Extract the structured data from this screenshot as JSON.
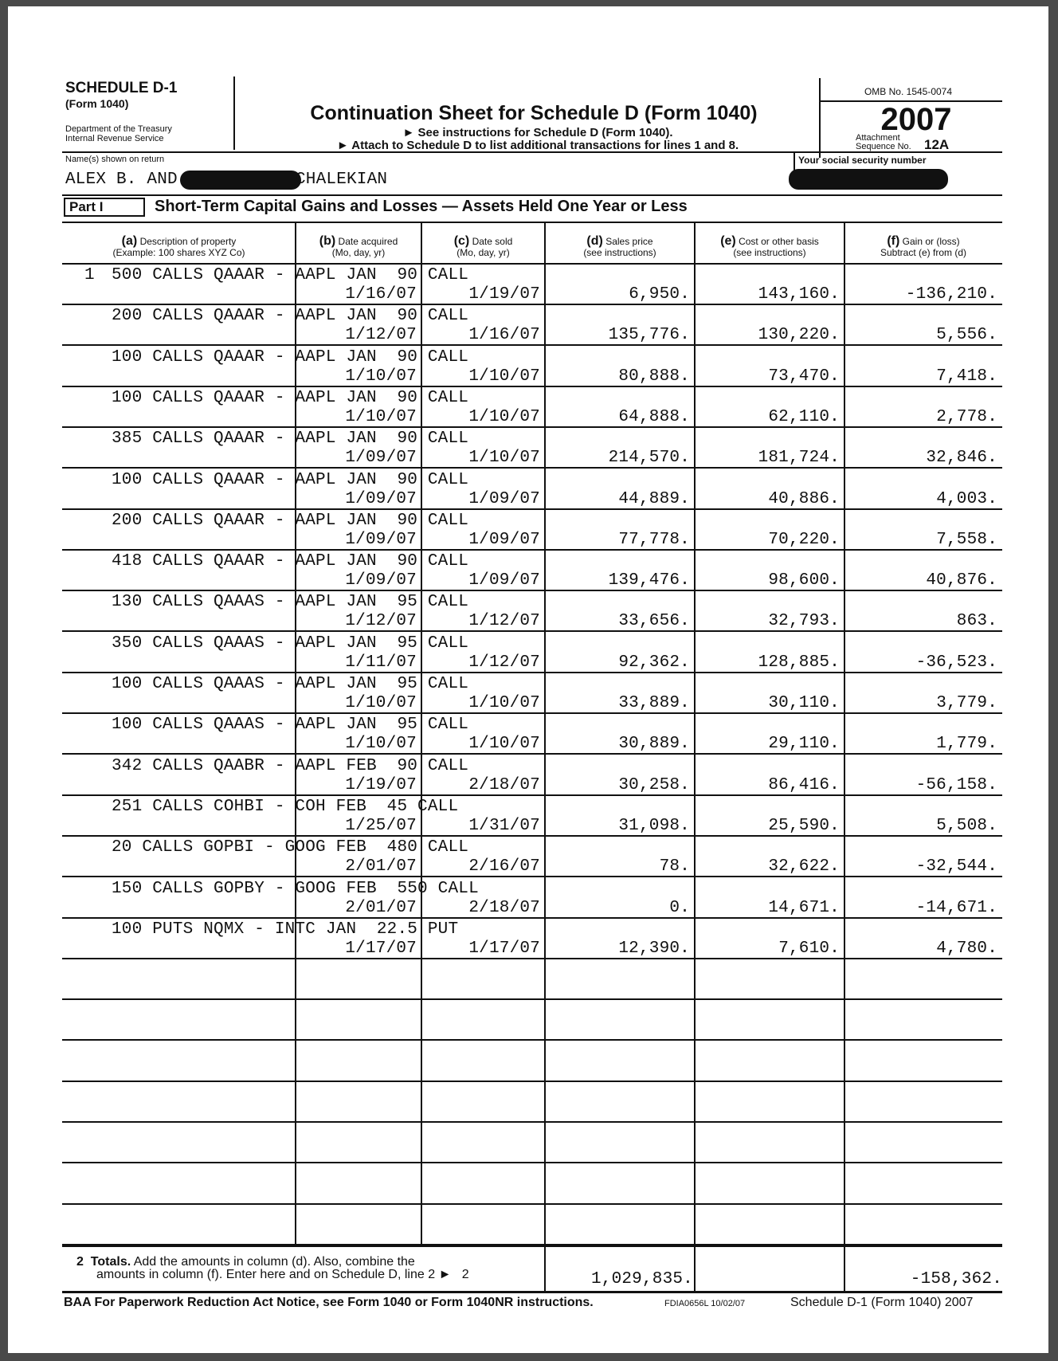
{
  "header": {
    "schedule": "SCHEDULE D-1",
    "form": "(Form 1040)",
    "department": "Department of the Treasury",
    "service": "Internal Revenue Service",
    "title": "Continuation Sheet for Schedule D (Form 1040)",
    "instruction1": "► See instructions for Schedule D (Form 1040).",
    "instruction2": "► Attach to Schedule D to list additional transactions for lines 1 and 8.",
    "omb": "OMB No. 1545-0074",
    "year": "2007",
    "attachment": "Attachment",
    "sequence_label": "Sequence No.",
    "sequence": "12A"
  },
  "taxpayer": {
    "name_label": "Name(s) shown on return",
    "name_first": "ALEX B. AND",
    "name_last": "CHALEKIAN",
    "ssn_label": "Your social security number"
  },
  "part": {
    "label": "Part I",
    "title": "Short-Term Capital Gains and Losses — Assets Held One Year or Less"
  },
  "columns": [
    {
      "letter": "(a)",
      "label": "Description of property",
      "sub": "(Example: 100 shares XYZ Co)"
    },
    {
      "letter": "(b)",
      "label": "Date acquired",
      "sub": "(Mo, day, yr)"
    },
    {
      "letter": "(c)",
      "label": "Date sold",
      "sub": "(Mo, day, yr)"
    },
    {
      "letter": "(d)",
      "label": "Sales price",
      "sub": "(see instructions)"
    },
    {
      "letter": "(e)",
      "label": "Cost or other basis",
      "sub": "(see instructions)"
    },
    {
      "letter": "(f)",
      "label": "Gain or (loss)",
      "sub": "Subtract (e) from (d)"
    }
  ],
  "line1_number": "1",
  "transactions": [
    {
      "description": "500 CALLS QAAAR - AAPL JAN  90 CALL",
      "acquired": "1/16/07",
      "sold": "1/19/07",
      "sales_price": "6,950.",
      "cost": "143,160.",
      "gain": "-136,210."
    },
    {
      "description": "200 CALLS QAAAR - AAPL JAN  90 CALL",
      "acquired": "1/12/07",
      "sold": "1/16/07",
      "sales_price": "135,776.",
      "cost": "130,220.",
      "gain": "5,556."
    },
    {
      "description": "100 CALLS QAAAR - AAPL JAN  90 CALL",
      "acquired": "1/10/07",
      "sold": "1/10/07",
      "sales_price": "80,888.",
      "cost": "73,470.",
      "gain": "7,418."
    },
    {
      "description": "100 CALLS QAAAR - AAPL JAN  90 CALL",
      "acquired": "1/10/07",
      "sold": "1/10/07",
      "sales_price": "64,888.",
      "cost": "62,110.",
      "gain": "2,778."
    },
    {
      "description": "385 CALLS QAAAR - AAPL JAN  90 CALL",
      "acquired": "1/09/07",
      "sold": "1/10/07",
      "sales_price": "214,570.",
      "cost": "181,724.",
      "gain": "32,846."
    },
    {
      "description": "100 CALLS QAAAR - AAPL JAN  90 CALL",
      "acquired": "1/09/07",
      "sold": "1/09/07",
      "sales_price": "44,889.",
      "cost": "40,886.",
      "gain": "4,003."
    },
    {
      "description": "200 CALLS QAAAR - AAPL JAN  90 CALL",
      "acquired": "1/09/07",
      "sold": "1/09/07",
      "sales_price": "77,778.",
      "cost": "70,220.",
      "gain": "7,558."
    },
    {
      "description": "418 CALLS QAAAR - AAPL JAN  90 CALL",
      "acquired": "1/09/07",
      "sold": "1/09/07",
      "sales_price": "139,476.",
      "cost": "98,600.",
      "gain": "40,876."
    },
    {
      "description": "130 CALLS QAAAS - AAPL JAN  95 CALL",
      "acquired": "1/12/07",
      "sold": "1/12/07",
      "sales_price": "33,656.",
      "cost": "32,793.",
      "gain": "863."
    },
    {
      "description": "350 CALLS QAAAS - AAPL JAN  95 CALL",
      "acquired": "1/11/07",
      "sold": "1/12/07",
      "sales_price": "92,362.",
      "cost": "128,885.",
      "gain": "-36,523."
    },
    {
      "description": "100 CALLS QAAAS - AAPL JAN  95 CALL",
      "acquired": "1/10/07",
      "sold": "1/10/07",
      "sales_price": "33,889.",
      "cost": "30,110.",
      "gain": "3,779."
    },
    {
      "description": "100 CALLS QAAAS - AAPL JAN  95 CALL",
      "acquired": "1/10/07",
      "sold": "1/10/07",
      "sales_price": "30,889.",
      "cost": "29,110.",
      "gain": "1,779."
    },
    {
      "description": "342 CALLS QAABR - AAPL FEB  90 CALL",
      "acquired": "1/19/07",
      "sold": "2/18/07",
      "sales_price": "30,258.",
      "cost": "86,416.",
      "gain": "-56,158."
    },
    {
      "description": "251 CALLS COHBI - COH FEB  45 CALL",
      "acquired": "1/25/07",
      "sold": "1/31/07",
      "sales_price": "31,098.",
      "cost": "25,590.",
      "gain": "5,508."
    },
    {
      "description": "20 CALLS GOPBI - GOOG FEB  480 CALL",
      "acquired": "2/01/07",
      "sold": "2/16/07",
      "sales_price": "78.",
      "cost": "32,622.",
      "gain": "-32,544."
    },
    {
      "description": "150 CALLS GOPBY - GOOG FEB  550 CALL",
      "acquired": "2/01/07",
      "sold": "2/18/07",
      "sales_price": "0.",
      "cost": "14,671.",
      "gain": "-14,671."
    },
    {
      "description": "100 PUTS NQMX - INTC JAN  22.5 PUT",
      "acquired": "1/17/07",
      "sold": "1/17/07",
      "sales_price": "12,390.",
      "cost": "7,610.",
      "gain": "4,780."
    }
  ],
  "totals": {
    "line_number": "2",
    "label_bold": "Totals.",
    "text1": "Add the amounts in column (d). Also, combine the",
    "text2": "amounts in column (f). Enter here and on Schedule D, line 2 ►",
    "box": "2",
    "sales_price": "1,029,835.",
    "gain": "-158,362."
  },
  "footer": {
    "notice": "BAA  For Paperwork Reduction Act Notice, see Form 1040 or Form 1040NR instructions.",
    "code": "FDIA0656L 10/02/07",
    "form_ref": "Schedule D-1 (Form 1040) 2007"
  }
}
